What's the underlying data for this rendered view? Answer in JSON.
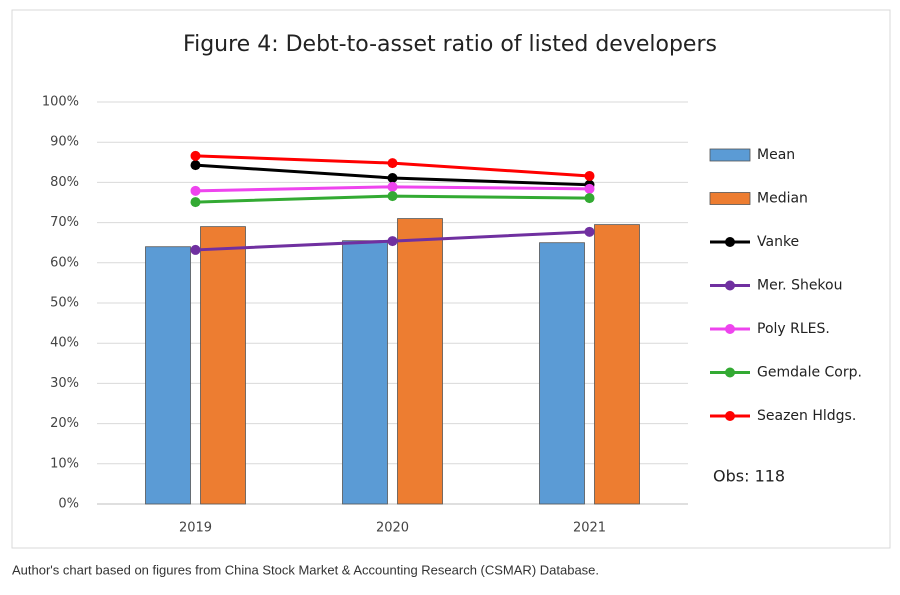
{
  "chart_data": {
    "type": "bar-line",
    "title": "Figure 4: Debt-to-asset ratio of listed developers",
    "categories": [
      "2019",
      "2020",
      "2021"
    ],
    "series": [
      {
        "name": "Mean",
        "type": "bar",
        "color": "#5b9bd5",
        "values": [
          64,
          65.5,
          65
        ]
      },
      {
        "name": "Median",
        "type": "bar",
        "color": "#ed7d31",
        "values": [
          69,
          71,
          69.5
        ]
      },
      {
        "name": "Vanke",
        "type": "line",
        "color": "#000000",
        "values": [
          84.3,
          81.1,
          79.4
        ]
      },
      {
        "name": "Mer. Shekou",
        "type": "line",
        "color": "#7030a0",
        "values": [
          63.2,
          65.4,
          67.7
        ]
      },
      {
        "name": "Poly RLES.",
        "type": "line",
        "color": "#ee44ee",
        "values": [
          77.9,
          78.9,
          78.4
        ]
      },
      {
        "name": "Gemdale Corp.",
        "type": "line",
        "color": "#33aa33",
        "values": [
          75.1,
          76.6,
          76.1
        ]
      },
      {
        "name": "Seazen Hldgs.",
        "type": "line",
        "color": "#ff0000",
        "values": [
          86.6,
          84.8,
          81.6
        ]
      }
    ],
    "ylim": [
      0,
      100
    ],
    "yticks": [
      {
        "value": 0,
        "label": "0%"
      },
      {
        "value": 10,
        "label": "10%"
      },
      {
        "value": 20,
        "label": "20%"
      },
      {
        "value": 30,
        "label": "30%"
      },
      {
        "value": 40,
        "label": "40%"
      },
      {
        "value": 50,
        "label": "50%"
      },
      {
        "value": 60,
        "label": "60%"
      },
      {
        "value": 70,
        "label": "70%"
      },
      {
        "value": 80,
        "label": "80%"
      },
      {
        "value": 90,
        "label": "90%"
      },
      {
        "value": 100,
        "label": "100%"
      }
    ],
    "grid": true,
    "legend": "right",
    "annotation": "Obs: 118",
    "caption": "Author's chart based on figures from China Stock Market & Accounting Research (CSMAR) Database."
  }
}
